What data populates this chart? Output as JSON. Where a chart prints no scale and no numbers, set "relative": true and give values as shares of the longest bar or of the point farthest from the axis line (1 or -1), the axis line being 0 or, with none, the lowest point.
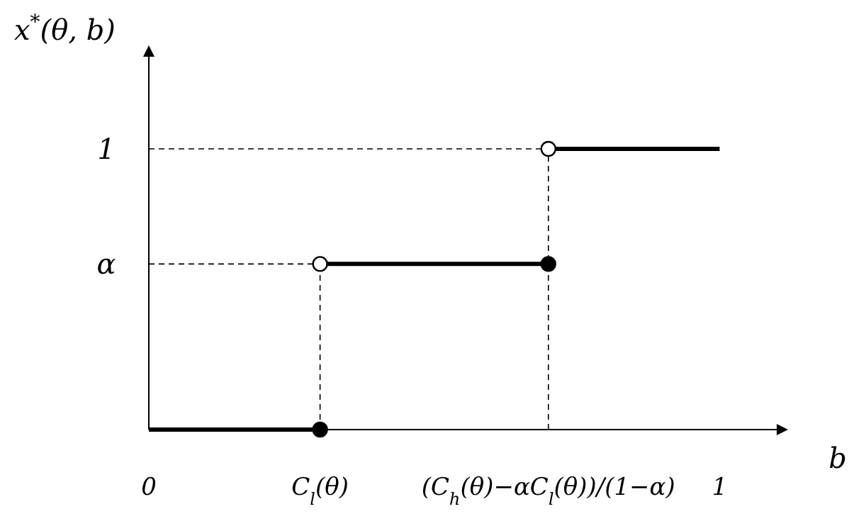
{
  "chart_data": {
    "type": "line",
    "xlabel": "b",
    "ylabel": "x$^{*}$(θ, b)",
    "grid": false,
    "marker": "none",
    "relative": true,
    "xlim": [
      0,
      1.1
    ],
    "xticks": [
      {
        "value": 0,
        "label": "0"
      },
      {
        "value": 0.3,
        "label": "C$_{l}$(θ)"
      },
      {
        "value": 0.7,
        "label": "(C$_{h}$(θ)−αC$_{l}$(θ))/(1−α)"
      },
      {
        "value": 1,
        "label": "1"
      }
    ],
    "annotations": [
      {
        "text": "α",
        "x": 0,
        "y": 0.59
      },
      {
        "text": "1",
        "x": 0,
        "y": 1
      }
    ],
    "series": [
      {
        "color": "#000000",
        "line_style": "dashed",
        "x": [
          0,
          0.7
        ],
        "values": [
          1,
          1
        ]
      },
      {
        "color": "#000000",
        "line_style": "dashed",
        "x": [
          0.7,
          0.7
        ],
        "values": [
          0,
          1
        ]
      },
      {
        "color": "#000000",
        "line_style": "dashed",
        "x": [
          0,
          0.3
        ],
        "values": [
          0.59,
          0.59
        ]
      },
      {
        "color": "#000000",
        "line_style": "dashed",
        "x": [
          0.3,
          0.3
        ],
        "values": [
          0,
          0.59
        ]
      },
      {
        "color": "#000000",
        "line_style": "solid",
        "x": [
          0,
          0.3
        ],
        "values": [
          0,
          0
        ]
      },
      {
        "color": "#000000",
        "line_style": "solid",
        "x": [
          0.3,
          0.7
        ],
        "values": [
          0.59,
          0.59
        ]
      },
      {
        "color": "#000000",
        "line_style": "solid",
        "x": [
          0.7,
          1
        ],
        "values": [
          1,
          1
        ]
      },
      {
        "type": "scatter",
        "color": "#000000",
        "marker": "circle",
        "x": [
          0.3,
          0.7
        ],
        "values": [
          0,
          0.59
        ]
      },
      {
        "type": "scatter",
        "color": "#ffffff",
        "marker": "circle",
        "x": [
          0.3,
          0.7
        ],
        "values": [
          0.59,
          1
        ]
      }
    ]
  }
}
